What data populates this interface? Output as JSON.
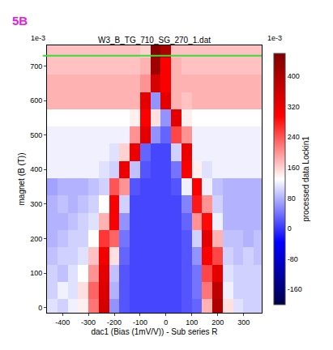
{
  "chart_data": {
    "type": "heatmap",
    "title": "W3_B_TG_710_SG_270_1.dat",
    "panel_label": "5B",
    "x_label": "dac1 (Bias (1mV/V)) - Sub series R",
    "y_label": "magnet (B (T))",
    "y_offset_label": "1e-3",
    "colorbar_title": "processed data Lockin1",
    "colorbar_offset_label": "1e-3",
    "xlim": [
      -460,
      370
    ],
    "xticks": [
      -400,
      -300,
      -200,
      -100,
      0,
      100,
      200,
      300
    ],
    "ylim": [
      -15,
      760
    ],
    "yticks": [
      0,
      100,
      200,
      300,
      400,
      500,
      600,
      700
    ],
    "colorbar_range": [
      -200,
      460
    ],
    "colorbar_ticks": [
      -160,
      -80,
      0,
      80,
      160,
      240,
      320,
      400
    ],
    "marked_line": {
      "y": 730,
      "color": "#33e033"
    },
    "x": [
      -440,
      -400,
      -360,
      -320,
      -280,
      -240,
      -200,
      -160,
      -120,
      -80,
      -40,
      0,
      40,
      80,
      120,
      160,
      200,
      240,
      280,
      320,
      360
    ],
    "y": [
      0,
      50,
      100,
      150,
      200,
      250,
      300,
      350,
      400,
      450,
      500,
      550,
      600,
      650,
      700,
      750
    ],
    "z": [
      [
        110,
        100,
        120,
        140,
        220,
        350,
        60,
        20,
        10,
        10,
        10,
        10,
        10,
        20,
        30,
        180,
        400,
        150,
        110,
        100,
        100
      ],
      [
        100,
        120,
        110,
        150,
        230,
        340,
        80,
        20,
        10,
        10,
        10,
        10,
        10,
        20,
        40,
        220,
        380,
        120,
        100,
        100,
        100
      ],
      [
        100,
        90,
        110,
        130,
        200,
        330,
        90,
        20,
        10,
        10,
        10,
        10,
        10,
        20,
        40,
        250,
        330,
        110,
        100,
        100,
        100
      ],
      [
        90,
        100,
        100,
        110,
        170,
        310,
        150,
        30,
        10,
        10,
        10,
        10,
        10,
        20,
        60,
        300,
        250,
        100,
        90,
        100,
        90
      ],
      [
        80,
        90,
        100,
        100,
        130,
        260,
        230,
        40,
        10,
        10,
        10,
        10,
        10,
        20,
        100,
        330,
        180,
        90,
        90,
        80,
        90
      ],
      [
        80,
        80,
        90,
        100,
        110,
        180,
        300,
        60,
        10,
        10,
        10,
        10,
        10,
        30,
        200,
        290,
        120,
        80,
        80,
        80,
        80
      ],
      [
        80,
        90,
        80,
        90,
        100,
        130,
        300,
        100,
        10,
        10,
        10,
        10,
        10,
        50,
        280,
        200,
        100,
        80,
        80,
        80,
        80
      ],
      [
        70,
        80,
        80,
        80,
        90,
        100,
        240,
        200,
        20,
        10,
        10,
        10,
        20,
        120,
        300,
        120,
        90,
        80,
        80,
        80,
        80
      ],
      [
        120,
        120,
        120,
        120,
        120,
        110,
        100,
        320,
        90,
        20,
        10,
        10,
        40,
        300,
        140,
        110,
        120,
        120,
        120,
        120,
        120
      ],
      [
        120,
        120,
        120,
        120,
        120,
        120,
        110,
        160,
        320,
        30,
        10,
        10,
        100,
        320,
        120,
        120,
        120,
        120,
        120,
        120,
        120
      ],
      [
        120,
        120,
        120,
        120,
        120,
        120,
        120,
        120,
        200,
        330,
        60,
        30,
        250,
        200,
        120,
        120,
        120,
        120,
        120,
        120,
        120
      ],
      [
        130,
        130,
        130,
        130,
        130,
        130,
        130,
        130,
        140,
        300,
        150,
        60,
        330,
        140,
        130,
        130,
        130,
        130,
        130,
        130,
        130
      ],
      [
        180,
        180,
        180,
        180,
        180,
        180,
        180,
        180,
        180,
        330,
        60,
        330,
        180,
        170,
        180,
        180,
        180,
        180,
        180,
        180,
        180
      ],
      [
        180,
        180,
        180,
        180,
        180,
        180,
        180,
        180,
        180,
        200,
        350,
        300,
        180,
        180,
        180,
        180,
        180,
        180,
        180,
        180,
        180
      ],
      [
        170,
        170,
        170,
        170,
        170,
        170,
        170,
        170,
        170,
        180,
        420,
        300,
        180,
        170,
        170,
        170,
        170,
        170,
        170,
        170,
        170
      ],
      [
        170,
        170,
        170,
        170,
        170,
        170,
        170,
        170,
        170,
        160,
        450,
        400,
        170,
        170,
        170,
        170,
        170,
        170,
        170,
        170,
        170
      ]
    ]
  }
}
